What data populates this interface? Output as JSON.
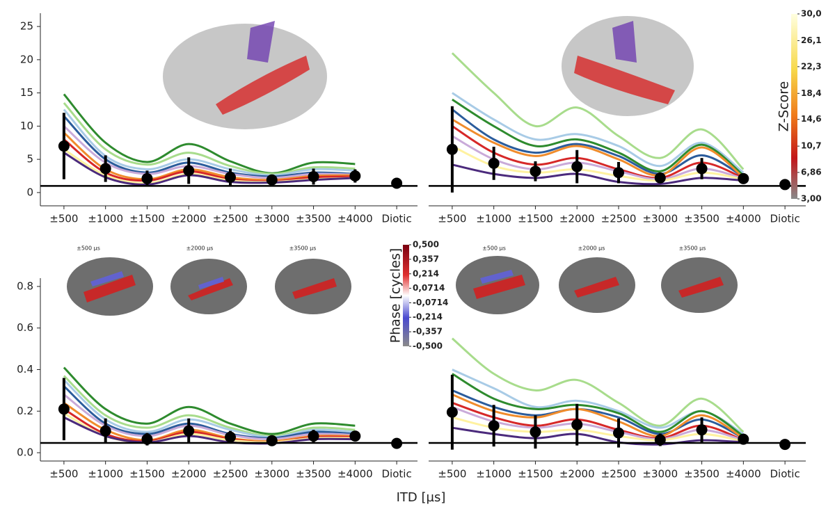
{
  "xlabel": "ITD [µs]",
  "chart_data": [
    {
      "type": "line",
      "categories": [
        "±500",
        "±1000",
        "±1500",
        "±2000",
        "±2500",
        "±3000",
        "±3500",
        "±4000",
        "Diotic"
      ],
      "ylim": [
        -2,
        27
      ],
      "yticks": [
        0,
        5,
        10,
        15,
        20,
        25
      ],
      "hline": 1,
      "values": [
        7,
        3.6,
        2.1,
        3.3,
        2.3,
        1.9,
        2.4,
        2.5,
        1.4
      ],
      "errors": [
        5,
        2,
        1.2,
        2,
        1.3,
        0.8,
        1.2,
        1.0,
        0.8
      ],
      "series": [
        {
          "color": "#2e8b2e",
          "values": [
            14.8,
            7.5,
            4.6,
            7.3,
            4.7,
            2.9,
            4.5,
            4.3,
            null
          ]
        },
        {
          "color": "#a8dc8c",
          "values": [
            13.5,
            6.5,
            4.2,
            6,
            4,
            2.8,
            3.8,
            3.6,
            null
          ]
        },
        {
          "color": "#a8cbe6",
          "values": [
            12.5,
            5.5,
            3.5,
            5,
            3.5,
            2.6,
            3.5,
            3.3,
            null
          ]
        },
        {
          "color": "#2b5c9c",
          "values": [
            11.5,
            5,
            3,
            4.5,
            3,
            2.4,
            3,
            2.8,
            null
          ]
        },
        {
          "color": "#c9aad9",
          "values": [
            10,
            4.5,
            2.8,
            4,
            2.8,
            2.2,
            2.8,
            2.7,
            null
          ]
        },
        {
          "color": "#f08c2c",
          "values": [
            9,
            3.5,
            2,
            3.5,
            2.3,
            1.9,
            2.5,
            2.6,
            null
          ]
        },
        {
          "color": "#d62828",
          "values": [
            8,
            3,
            1.8,
            3.2,
            2,
            1.7,
            2.3,
            2.4,
            null
          ]
        },
        {
          "color": "#fff2a0",
          "values": [
            6.5,
            2.6,
            1.4,
            2.8,
            1.8,
            1.6,
            2.0,
            2.2,
            null
          ]
        },
        {
          "color": "#4b2a7c",
          "values": [
            6,
            2.3,
            1.2,
            2.6,
            1.6,
            1.5,
            1.9,
            2.2,
            null
          ]
        }
      ]
    },
    {
      "type": "line",
      "categories": [
        "±500",
        "±1000",
        "±1500",
        "±2000",
        "±2500",
        "±3000",
        "±3500",
        "±4000",
        "Diotic"
      ],
      "ylim": [
        -2,
        27
      ],
      "hline": 1,
      "values": [
        6.5,
        4.4,
        3.2,
        3.9,
        3.0,
        2.2,
        3.6,
        2.1,
        1.2
      ],
      "errors": [
        6.5,
        2.5,
        1.5,
        2.5,
        1.6,
        0.8,
        1.6,
        0.6,
        0.6
      ],
      "series": [
        {
          "color": "#a8dc8c",
          "values": [
            21,
            15,
            10,
            12.8,
            8.5,
            5.2,
            9.5,
            3.5,
            null
          ]
        },
        {
          "color": "#a8cbe6",
          "values": [
            15,
            11,
            8,
            8.8,
            7,
            4,
            7.5,
            3,
            null
          ]
        },
        {
          "color": "#2e8b2e",
          "values": [
            14,
            10,
            7,
            8,
            6,
            3.2,
            7.2,
            2.6,
            null
          ]
        },
        {
          "color": "#2b5c9c",
          "values": [
            12.5,
            8,
            6,
            7.3,
            5.5,
            2.8,
            5.6,
            2.4,
            null
          ]
        },
        {
          "color": "#f08c2c",
          "values": [
            11,
            7.5,
            5.5,
            7,
            5,
            2.6,
            6.8,
            2.3,
            null
          ]
        },
        {
          "color": "#d62828",
          "values": [
            10,
            6,
            4.2,
            5.2,
            3.5,
            2.2,
            4.5,
            2.2,
            null
          ]
        },
        {
          "color": "#c9aad9",
          "values": [
            8.5,
            5,
            3.5,
            4.5,
            3.2,
            2,
            3.6,
            2.1,
            null
          ]
        },
        {
          "color": "#fff2a0",
          "values": [
            7,
            4,
            3,
            3.5,
            2.5,
            1.8,
            3,
            2,
            null
          ]
        },
        {
          "color": "#4b2a7c",
          "values": [
            4.2,
            2.8,
            2.2,
            2.8,
            1.6,
            1.3,
            2.2,
            1.8,
            null
          ]
        }
      ],
      "colorbar": {
        "title": "Z-Score",
        "range": [
          3,
          30
        ],
        "ticks": [
          {
            "value": 30,
            "label": "30,0"
          },
          {
            "value": 26.1,
            "label": "26,1"
          },
          {
            "value": 22.3,
            "label": "22,3"
          },
          {
            "value": 18.4,
            "label": "18,4"
          },
          {
            "value": 14.6,
            "label": "14,6"
          },
          {
            "value": 10.7,
            "label": "10,7"
          },
          {
            "value": 6.86,
            "label": "6,86"
          },
          {
            "value": 3,
            "label": "3,00"
          }
        ]
      }
    },
    {
      "type": "line",
      "categories": [
        "±500",
        "±1000",
        "±1500",
        "±2000",
        "±2500",
        "±3000",
        "±3500",
        "±4000",
        "Diotic"
      ],
      "ylim": [
        -0.04,
        0.84
      ],
      "yticks": [
        {
          "value": 0,
          "label": "0.0"
        },
        0.2,
        0.4,
        0.6,
        0.8
      ],
      "hline": 0.047,
      "values": [
        0.21,
        0.105,
        0.065,
        0.105,
        0.075,
        0.058,
        0.08,
        0.08,
        0.045
      ],
      "errors": [
        0.15,
        0.06,
        0.03,
        0.06,
        0.03,
        0.02,
        0.03,
        0.02,
        0.02
      ],
      "inset_labels": [
        "±500 µs",
        "±2000 µs",
        "±3500 µs"
      ],
      "series": [
        {
          "color": "#2e8b2e",
          "values": [
            0.41,
            0.21,
            0.14,
            0.22,
            0.14,
            0.09,
            0.14,
            0.13,
            null
          ]
        },
        {
          "color": "#a8dc8c",
          "values": [
            0.37,
            0.18,
            0.12,
            0.18,
            0.12,
            0.08,
            0.12,
            0.11,
            null
          ]
        },
        {
          "color": "#a8cbe6",
          "values": [
            0.35,
            0.16,
            0.1,
            0.16,
            0.11,
            0.075,
            0.11,
            0.1,
            null
          ]
        },
        {
          "color": "#2b5c9c",
          "values": [
            0.32,
            0.14,
            0.09,
            0.14,
            0.09,
            0.07,
            0.1,
            0.09,
            null
          ]
        },
        {
          "color": "#c9aad9",
          "values": [
            0.28,
            0.13,
            0.08,
            0.13,
            0.085,
            0.065,
            0.09,
            0.085,
            null
          ]
        },
        {
          "color": "#f08c2c",
          "values": [
            0.24,
            0.11,
            0.06,
            0.11,
            0.07,
            0.055,
            0.08,
            0.08,
            null
          ]
        },
        {
          "color": "#d62828",
          "values": [
            0.21,
            0.09,
            0.055,
            0.1,
            0.065,
            0.05,
            0.075,
            0.075,
            null
          ]
        },
        {
          "color": "#fff2a0",
          "values": [
            0.19,
            0.08,
            0.05,
            0.09,
            0.06,
            0.05,
            0.07,
            0.07,
            null
          ]
        },
        {
          "color": "#4b2a7c",
          "values": [
            0.17,
            0.08,
            0.05,
            0.08,
            0.05,
            0.045,
            0.065,
            0.065,
            null
          ]
        }
      ],
      "colorbar": {
        "title": "Phase [cycles]",
        "range": [
          -0.5,
          0.5
        ],
        "ticks": [
          {
            "value": 0.5,
            "label": "0,500"
          },
          {
            "value": 0.357,
            "label": "0,357"
          },
          {
            "value": 0.214,
            "label": "0,214"
          },
          {
            "value": 0.0714,
            "label": "0,0714"
          },
          {
            "value": -0.0714,
            "label": "-0,0714"
          },
          {
            "value": -0.214,
            "label": "-0,214"
          },
          {
            "value": -0.357,
            "label": "-0,357"
          },
          {
            "value": -0.5,
            "label": "-0,500"
          }
        ]
      }
    },
    {
      "type": "line",
      "categories": [
        "±500",
        "±1000",
        "±1500",
        "±2000",
        "±2500",
        "±3000",
        "±3500",
        "±4000",
        "Diotic"
      ],
      "ylim": [
        -0.04,
        0.84
      ],
      "hline": 0.047,
      "values": [
        0.195,
        0.13,
        0.1,
        0.135,
        0.095,
        0.062,
        0.11,
        0.065,
        0.04
      ],
      "errors": [
        0.18,
        0.1,
        0.08,
        0.1,
        0.07,
        0.03,
        0.06,
        0.02,
        0.02
      ],
      "inset_labels": [
        "±500 µs",
        "±2000 µs",
        "±3500 µs"
      ],
      "series": [
        {
          "color": "#a8dc8c",
          "values": [
            0.55,
            0.38,
            0.3,
            0.35,
            0.24,
            0.13,
            0.26,
            0.1,
            null
          ]
        },
        {
          "color": "#a8cbe6",
          "values": [
            0.4,
            0.31,
            0.22,
            0.25,
            0.2,
            0.12,
            0.2,
            0.09,
            null
          ]
        },
        {
          "color": "#2e8b2e",
          "values": [
            0.38,
            0.26,
            0.21,
            0.23,
            0.19,
            0.1,
            0.2,
            0.08,
            null
          ]
        },
        {
          "color": "#2b5c9c",
          "values": [
            0.3,
            0.22,
            0.18,
            0.21,
            0.17,
            0.09,
            0.16,
            0.07,
            null
          ]
        },
        {
          "color": "#f08c2c",
          "values": [
            0.28,
            0.2,
            0.17,
            0.21,
            0.15,
            0.08,
            0.18,
            0.07,
            null
          ]
        },
        {
          "color": "#d62828",
          "values": [
            0.24,
            0.17,
            0.13,
            0.16,
            0.11,
            0.07,
            0.13,
            0.06,
            null
          ]
        },
        {
          "color": "#c9aad9",
          "values": [
            0.22,
            0.15,
            0.12,
            0.14,
            0.1,
            0.065,
            0.11,
            0.06,
            null
          ]
        },
        {
          "color": "#fff2a0",
          "values": [
            0.17,
            0.12,
            0.1,
            0.11,
            0.08,
            0.06,
            0.09,
            0.055,
            null
          ]
        },
        {
          "color": "#4b2a7c",
          "values": [
            0.12,
            0.09,
            0.07,
            0.09,
            0.05,
            0.04,
            0.06,
            0.05,
            null
          ]
        }
      ]
    }
  ]
}
